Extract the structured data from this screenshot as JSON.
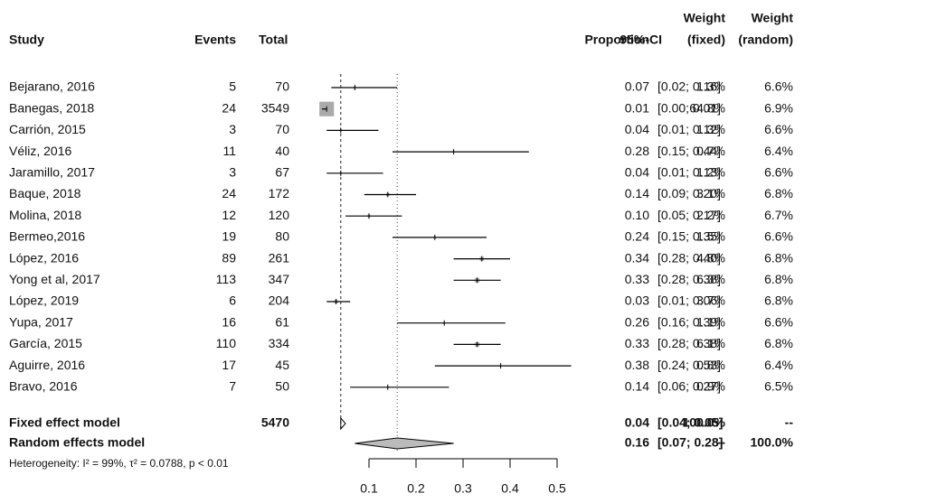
{
  "chart_data": {
    "type": "forest",
    "header": {
      "study": "Study",
      "events": "Events",
      "total": "Total",
      "proportion": "Proportion",
      "ci": "95%-CI",
      "weight_fixed": [
        "Weight",
        "(fixed)"
      ],
      "weight_random": [
        "Weight",
        "(random)"
      ]
    },
    "studies": [
      "Bejarano, 2016",
      "Banegas, 2018",
      "Carrión, 2015",
      "Véliz, 2016",
      "Jaramillo, 2017",
      "Baque, 2018",
      "Molina, 2018",
      "Bermeo,2016",
      "López, 2016",
      "Yong et al, 2017",
      "López, 2019",
      "Yupa, 2017",
      "García, 2015",
      "Aguirre, 2016",
      "Bravo, 2016"
    ],
    "events": [
      5,
      24,
      3,
      11,
      3,
      24,
      12,
      19,
      89,
      113,
      6,
      16,
      110,
      17,
      7
    ],
    "totals": [
      70,
      3549,
      70,
      40,
      67,
      172,
      120,
      80,
      261,
      347,
      204,
      61,
      334,
      45,
      50
    ],
    "values": [
      0.07,
      0.01,
      0.04,
      0.28,
      0.04,
      0.14,
      0.1,
      0.24,
      0.34,
      0.33,
      0.03,
      0.26,
      0.33,
      0.38,
      0.14
    ],
    "value_labels": [
      "0.07",
      "0.01",
      "0.04",
      "0.28",
      "0.04",
      "0.14",
      "0.10",
      "0.24",
      "0.34",
      "0.33",
      "0.03",
      "0.26",
      "0.33",
      "0.38",
      "0.14"
    ],
    "ci_low": [
      0.02,
      0.0,
      0.01,
      0.15,
      0.01,
      0.09,
      0.05,
      0.15,
      0.28,
      0.28,
      0.01,
      0.16,
      0.28,
      0.24,
      0.06
    ],
    "ci_high": [
      0.16,
      0.01,
      0.12,
      0.44,
      0.13,
      0.2,
      0.17,
      0.35,
      0.4,
      0.38,
      0.06,
      0.39,
      0.38,
      0.53,
      0.27
    ],
    "ci_labels": [
      "[0.02; 0.16]",
      "[0.00; 0.01]",
      "[0.01; 0.12]",
      "[0.15; 0.44]",
      "[0.01; 0.13]",
      "[0.09; 0.20]",
      "[0.05; 0.17]",
      "[0.15; 0.35]",
      "[0.28; 0.40]",
      "[0.28; 0.38]",
      "[0.01; 0.06]",
      "[0.16; 0.39]",
      "[0.28; 0.38]",
      "[0.24; 0.53]",
      "[0.06; 0.27]"
    ],
    "weight_fixed": [
      1.3,
      64.8,
      1.3,
      0.7,
      1.2,
      3.1,
      2.2,
      1.5,
      4.8,
      6.3,
      3.7,
      1.1,
      6.1,
      0.8,
      0.9
    ],
    "weight_fixed_labels": [
      "1.3%",
      "64.8%",
      "1.3%",
      "0.7%",
      "1.2%",
      "3.1%",
      "2.2%",
      "1.5%",
      "4.8%",
      "6.3%",
      "3.7%",
      "1.1%",
      "6.1%",
      "0.8%",
      "0.9%"
    ],
    "weight_random": [
      "6.6%",
      "6.9%",
      "6.6%",
      "6.4%",
      "6.6%",
      "6.8%",
      "6.7%",
      "6.6%",
      "6.8%",
      "6.8%",
      "6.8%",
      "6.6%",
      "6.8%",
      "6.4%",
      "6.5%"
    ],
    "summaries": [
      {
        "name": "Fixed effect model",
        "total": 5470,
        "value": 0.04,
        "value_label": "0.04",
        "ci_low": 0.04,
        "ci_high": 0.05,
        "ci_label": "[0.04; 0.05]",
        "weight_fixed": "100.0%",
        "weight_random": "--"
      },
      {
        "name": "Random effects model",
        "value": 0.16,
        "value_label": "0.16",
        "ci_low": 0.07,
        "ci_high": 0.28,
        "ci_label": "[0.07; 0.28]",
        "weight_fixed": "--",
        "weight_random": "100.0%"
      }
    ],
    "heterogeneity": "Heterogeneity: I² = 99%, τ² = 0.0788, p < 0.01",
    "xlim": [
      0.1,
      0.5
    ],
    "xticks": [
      0.1,
      0.2,
      0.3,
      0.4,
      0.5
    ],
    "square_color": "#aaaaaa",
    "diamond_color": "#bbbbbb"
  }
}
